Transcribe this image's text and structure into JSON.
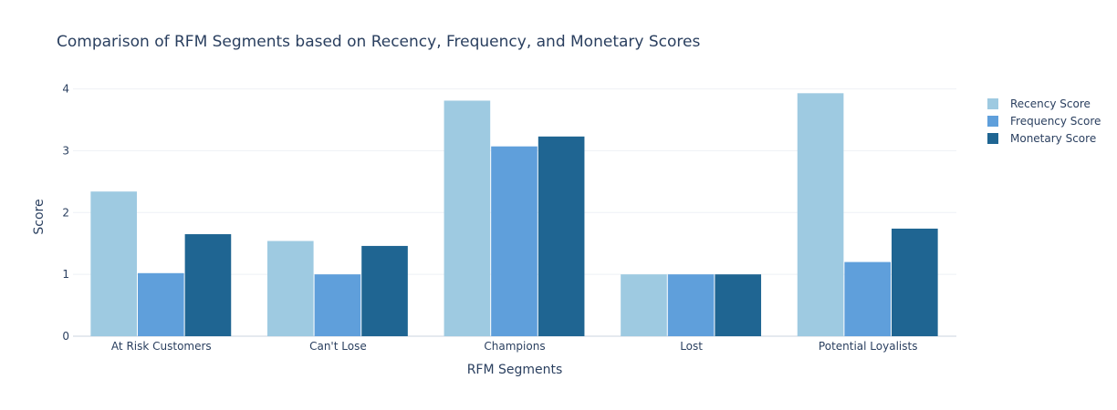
{
  "chart_data": {
    "type": "bar",
    "title": "Comparison of RFM Segments based on Recency, Frequency, and Monetary Scores",
    "xlabel": "RFM Segments",
    "ylabel": "Score",
    "categories": [
      "At Risk Customers",
      "Can't Lose",
      "Champions",
      "Lost",
      "Potential Loyalists"
    ],
    "series": [
      {
        "name": "Recency Score",
        "color": "#9ecae1",
        "values": [
          2.34,
          1.54,
          3.81,
          1.0,
          3.93
        ]
      },
      {
        "name": "Frequency Score",
        "color": "#5f9fdb",
        "values": [
          1.02,
          1.0,
          3.07,
          1.0,
          1.2
        ]
      },
      {
        "name": "Monetary Score",
        "color": "#1f6592",
        "values": [
          1.65,
          1.46,
          3.23,
          1.0,
          1.74
        ]
      }
    ],
    "ylim": [
      0,
      4.2
    ],
    "yticks": [
      0,
      1,
      2,
      3,
      4
    ],
    "grid": true,
    "legend_position": "top-right"
  }
}
